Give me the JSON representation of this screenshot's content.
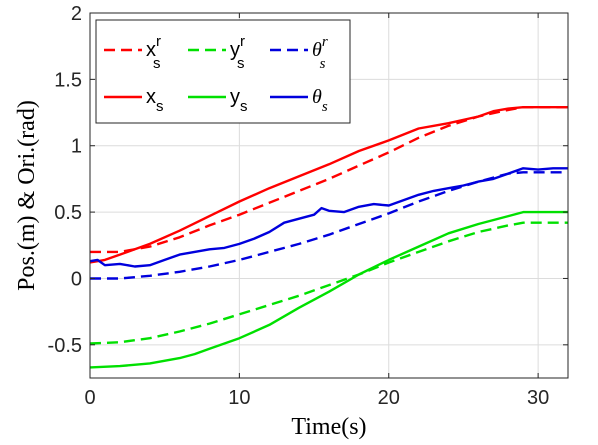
{
  "chart_data": {
    "type": "line",
    "xlabel": "Time(s)",
    "ylabel": "Pos.(m) & Ori.(rad)",
    "xlim": [
      0,
      32
    ],
    "ylim": [
      -0.75,
      2
    ],
    "xticks": [
      0,
      10,
      20,
      30
    ],
    "yticks": [
      -0.5,
      0,
      0.5,
      1,
      1.5,
      2
    ],
    "xtick_labels": [
      "0",
      "10",
      "20",
      "30"
    ],
    "ytick_labels": [
      "-0.5",
      "0",
      "0.5",
      "1",
      "1.5",
      "2"
    ],
    "grid": true,
    "legend_position": "top-left",
    "series": [
      {
        "name": "x_s^r",
        "label_main": "x",
        "label_sub": "s",
        "label_sup": "r",
        "color": "#ff0000",
        "dash": true,
        "points": [
          [
            0,
            0.2
          ],
          [
            2,
            0.2
          ],
          [
            4,
            0.24
          ],
          [
            6,
            0.31
          ],
          [
            8,
            0.4
          ],
          [
            10,
            0.48
          ],
          [
            12,
            0.57
          ],
          [
            14,
            0.66
          ],
          [
            16,
            0.75
          ],
          [
            18,
            0.85
          ],
          [
            20,
            0.95
          ],
          [
            22,
            1.06
          ],
          [
            24,
            1.15
          ],
          [
            26,
            1.22
          ],
          [
            28,
            1.27
          ],
          [
            29,
            1.29
          ],
          [
            32,
            1.29
          ]
        ]
      },
      {
        "name": "y_s^r",
        "label_main": "y",
        "label_sub": "s",
        "label_sup": "r",
        "color": "#00e000",
        "dash": true,
        "points": [
          [
            0,
            -0.49
          ],
          [
            2,
            -0.48
          ],
          [
            4,
            -0.45
          ],
          [
            6,
            -0.4
          ],
          [
            8,
            -0.34
          ],
          [
            10,
            -0.27
          ],
          [
            12,
            -0.2
          ],
          [
            14,
            -0.13
          ],
          [
            16,
            -0.05
          ],
          [
            18,
            0.03
          ],
          [
            20,
            0.12
          ],
          [
            22,
            0.2
          ],
          [
            24,
            0.28
          ],
          [
            26,
            0.35
          ],
          [
            28,
            0.4
          ],
          [
            29,
            0.42
          ],
          [
            32,
            0.42
          ]
        ]
      },
      {
        "name": "θ_s^r",
        "label_main": "θ",
        "label_sub": "s",
        "label_sup": "r",
        "color": "#0000dd",
        "dash": true,
        "theta": true,
        "points": [
          [
            0,
            0.0
          ],
          [
            2,
            0.0
          ],
          [
            4,
            0.02
          ],
          [
            6,
            0.05
          ],
          [
            8,
            0.09
          ],
          [
            10,
            0.14
          ],
          [
            12,
            0.2
          ],
          [
            14,
            0.26
          ],
          [
            16,
            0.33
          ],
          [
            18,
            0.41
          ],
          [
            20,
            0.49
          ],
          [
            22,
            0.58
          ],
          [
            24,
            0.66
          ],
          [
            26,
            0.73
          ],
          [
            28,
            0.79
          ],
          [
            29,
            0.8
          ],
          [
            32,
            0.8
          ]
        ]
      },
      {
        "name": "x_s",
        "label_main": "x",
        "label_sub": "s",
        "color": "#ff0000",
        "dash": false,
        "points": [
          [
            0,
            0.12
          ],
          [
            1,
            0.14
          ],
          [
            2,
            0.18
          ],
          [
            3,
            0.22
          ],
          [
            4,
            0.26
          ],
          [
            6,
            0.36
          ],
          [
            8,
            0.47
          ],
          [
            10,
            0.58
          ],
          [
            12,
            0.68
          ],
          [
            14,
            0.77
          ],
          [
            16,
            0.86
          ],
          [
            18,
            0.96
          ],
          [
            20,
            1.04
          ],
          [
            22,
            1.13
          ],
          [
            24,
            1.17
          ],
          [
            26,
            1.22
          ],
          [
            27,
            1.26
          ],
          [
            28,
            1.28
          ],
          [
            29,
            1.29
          ],
          [
            32,
            1.29
          ]
        ]
      },
      {
        "name": "y_s",
        "label_main": "y",
        "label_sub": "s",
        "color": "#00e000",
        "dash": false,
        "points": [
          [
            0,
            -0.67
          ],
          [
            2,
            -0.66
          ],
          [
            4,
            -0.64
          ],
          [
            6,
            -0.6
          ],
          [
            7,
            -0.57
          ],
          [
            8,
            -0.53
          ],
          [
            10,
            -0.45
          ],
          [
            12,
            -0.35
          ],
          [
            14,
            -0.22
          ],
          [
            16,
            -0.1
          ],
          [
            18,
            0.03
          ],
          [
            20,
            0.14
          ],
          [
            22,
            0.24
          ],
          [
            24,
            0.34
          ],
          [
            26,
            0.41
          ],
          [
            28,
            0.47
          ],
          [
            29,
            0.5
          ],
          [
            32,
            0.5
          ]
        ]
      },
      {
        "name": "θ_s",
        "label_main": "θ",
        "label_sub": "s",
        "color": "#0000dd",
        "dash": false,
        "theta": true,
        "points": [
          [
            0,
            0.13
          ],
          [
            0.5,
            0.14
          ],
          [
            1,
            0.1
          ],
          [
            2,
            0.11
          ],
          [
            3,
            0.09
          ],
          [
            4,
            0.1
          ],
          [
            5,
            0.14
          ],
          [
            6,
            0.18
          ],
          [
            7,
            0.2
          ],
          [
            8,
            0.22
          ],
          [
            9,
            0.23
          ],
          [
            10,
            0.26
          ],
          [
            11,
            0.3
          ],
          [
            12,
            0.35
          ],
          [
            13,
            0.42
          ],
          [
            14,
            0.45
          ],
          [
            15,
            0.48
          ],
          [
            15.5,
            0.53
          ],
          [
            16,
            0.51
          ],
          [
            17,
            0.5
          ],
          [
            18,
            0.54
          ],
          [
            19,
            0.56
          ],
          [
            20,
            0.55
          ],
          [
            21,
            0.59
          ],
          [
            22,
            0.63
          ],
          [
            23,
            0.66
          ],
          [
            24,
            0.68
          ],
          [
            25,
            0.7
          ],
          [
            26,
            0.73
          ],
          [
            27,
            0.75
          ],
          [
            28,
            0.79
          ],
          [
            29,
            0.83
          ],
          [
            30,
            0.82
          ],
          [
            31,
            0.83
          ],
          [
            32,
            0.83
          ]
        ]
      }
    ]
  }
}
